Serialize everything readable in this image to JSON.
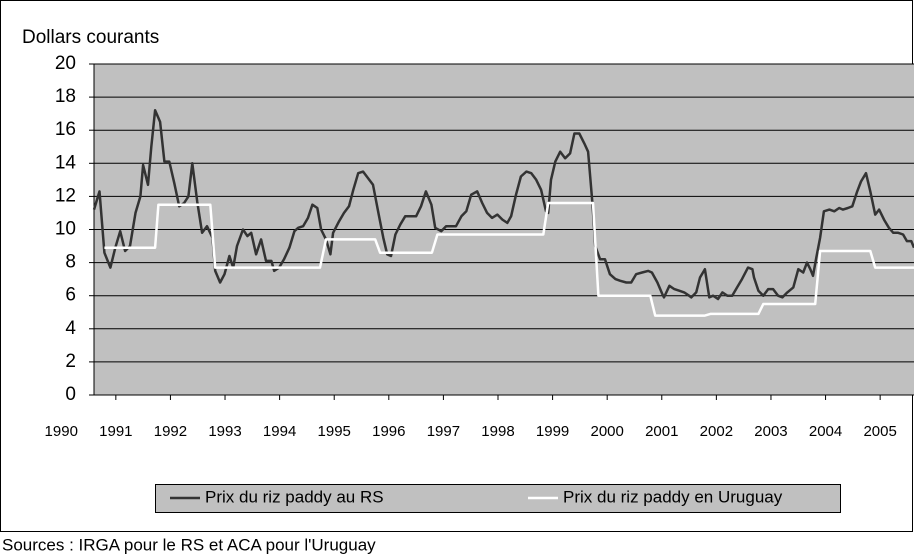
{
  "chart_data": {
    "type": "line",
    "y_label": "Dollars courants",
    "source": "Sources : IRGA pour le RS et ACA pour l'Uruguay",
    "xlim": [
      1990.6,
      2005.62
    ],
    "xticks": [
      1990,
      1991,
      1992,
      1993,
      1994,
      1995,
      1996,
      1997,
      1998,
      1999,
      2000,
      2001,
      2002,
      2003,
      2004,
      2005
    ],
    "ylim": [
      0,
      20
    ],
    "yticks": [
      0,
      2,
      4,
      6,
      8,
      10,
      12,
      14,
      16,
      18,
      20
    ],
    "grid": true,
    "legend": "bottom",
    "series": [
      {
        "name": "Prix du riz paddy  au RS",
        "color": "#333333",
        "x": [
          1990.6,
          1990.7,
          1990.79,
          1990.9,
          1990.99,
          1991.08,
          1991.17,
          1991.26,
          1991.36,
          1991.45,
          1991.5,
          1991.59,
          1991.65,
          1991.72,
          1991.81,
          1991.89,
          1991.98,
          1992.07,
          1992.16,
          1992.25,
          1992.33,
          1992.4,
          1992.49,
          1992.58,
          1992.67,
          1992.77,
          1992.82,
          1992.91,
          1992.99,
          1993.08,
          1993.15,
          1993.22,
          1993.33,
          1993.41,
          1993.48,
          1993.57,
          1993.66,
          1993.75,
          1993.85,
          1993.9,
          1993.99,
          1994.08,
          1994.18,
          1994.27,
          1994.34,
          1994.43,
          1994.52,
          1994.6,
          1994.69,
          1994.76,
          1994.85,
          1994.93,
          1994.98,
          1995.09,
          1995.18,
          1995.27,
          1995.35,
          1995.44,
          1995.53,
          1995.62,
          1995.71,
          1995.81,
          1995.9,
          1995.97,
          1996.04,
          1996.12,
          1996.21,
          1996.3,
          1996.41,
          1996.5,
          1996.59,
          1996.68,
          1996.78,
          1996.85,
          1996.96,
          1997.05,
          1997.14,
          1997.23,
          1997.33,
          1997.42,
          1997.51,
          1997.62,
          1997.71,
          1997.8,
          1997.89,
          1997.99,
          1998.08,
          1998.17,
          1998.24,
          1998.33,
          1998.42,
          1998.52,
          1998.61,
          1998.7,
          1998.79,
          1998.88,
          1998.92,
          1998.97,
          1999.05,
          1999.14,
          1999.23,
          1999.32,
          1999.4,
          1999.49,
          1999.58,
          1999.65,
          1999.73,
          1999.78,
          1999.87,
          1999.96,
          2000.05,
          2000.15,
          2000.24,
          2000.35,
          2000.44,
          2000.53,
          2000.64,
          2000.75,
          2000.82,
          2000.92,
          2001.01,
          2001.04,
          2001.14,
          2001.23,
          2001.32,
          2001.41,
          2001.5,
          2001.54,
          2001.63,
          2001.7,
          2001.79,
          2001.87,
          2001.94,
          2002.03,
          2002.11,
          2002.2,
          2002.29,
          2002.38,
          2002.47,
          2002.58,
          2002.66,
          2002.69,
          2002.77,
          2002.86,
          2002.95,
          2003.04,
          2003.13,
          2003.21,
          2003.3,
          2003.41,
          2003.5,
          2003.59,
          2003.66,
          2003.72,
          2003.77,
          2003.83,
          2003.9,
          2003.97,
          2004.07,
          2004.16,
          2004.25,
          2004.32,
          2004.41,
          2004.49,
          2004.58,
          2004.65,
          2004.74,
          2004.82,
          2004.91,
          2004.98,
          2005.07,
          2005.16,
          2005.24,
          2005.33,
          2005.42,
          2005.49,
          2005.57,
          2005.62
        ],
        "values": [
          11.2,
          12.3,
          8.6,
          7.7,
          8.9,
          9.9,
          8.7,
          9.0,
          11.0,
          12.0,
          13.9,
          12.7,
          15.0,
          17.2,
          16.5,
          14.1,
          14.1,
          12.8,
          11.4,
          11.6,
          12.0,
          14.0,
          11.7,
          9.8,
          10.2,
          9.5,
          7.5,
          6.8,
          7.3,
          8.4,
          7.7,
          9.0,
          10.0,
          9.6,
          9.8,
          8.5,
          9.4,
          8.1,
          8.1,
          7.5,
          7.7,
          8.2,
          8.9,
          9.9,
          10.1,
          10.2,
          10.7,
          11.5,
          11.3,
          10.0,
          9.4,
          8.5,
          9.8,
          10.5,
          11.0,
          11.4,
          12.4,
          13.4,
          13.5,
          13.1,
          12.7,
          11.0,
          9.5,
          8.5,
          8.4,
          9.7,
          10.3,
          10.8,
          10.8,
          10.8,
          11.4,
          12.3,
          11.5,
          10.1,
          9.9,
          10.2,
          10.2,
          10.2,
          10.8,
          11.1,
          12.1,
          12.3,
          11.6,
          11.0,
          10.7,
          10.9,
          10.6,
          10.4,
          10.8,
          12.1,
          13.2,
          13.5,
          13.4,
          13.0,
          12.4,
          11.1,
          11.0,
          13.0,
          14.1,
          14.7,
          14.3,
          14.6,
          15.8,
          15.8,
          15.2,
          14.7,
          11.6,
          9.0,
          8.2,
          8.2,
          7.3,
          7.0,
          6.9,
          6.8,
          6.8,
          7.3,
          7.4,
          7.5,
          7.4,
          6.8,
          6.1,
          5.9,
          6.6,
          6.4,
          6.3,
          6.2,
          6.0,
          5.9,
          6.2,
          7.1,
          7.6,
          5.9,
          6.0,
          5.8,
          6.2,
          6.0,
          6.0,
          6.5,
          7.0,
          7.7,
          7.6,
          7.1,
          6.3,
          6.0,
          6.4,
          6.4,
          6.0,
          5.9,
          6.2,
          6.5,
          7.6,
          7.4,
          8.0,
          7.6,
          7.2,
          8.3,
          9.5,
          11.1,
          11.2,
          11.1,
          11.3,
          11.2,
          11.3,
          11.4,
          12.3,
          12.9,
          13.4,
          12.3,
          10.9,
          11.2,
          10.6,
          10.1,
          9.8,
          9.8,
          9.7,
          9.3,
          9.3,
          8.9
        ]
      },
      {
        "name": "Prix du riz paddy en Uruguay",
        "color": "#ffffff",
        "x": [
          1990.79,
          1991.72,
          1991.78,
          1992.73,
          1992.82,
          1994.74,
          1994.85,
          1995.75,
          1995.84,
          1996.79,
          1996.89,
          1998.83,
          1998.92,
          1999.74,
          1999.84,
          2000.79,
          2000.88,
          2001.79,
          2001.89,
          2002.77,
          2002.86,
          2003.81,
          2003.9,
          2004.82,
          2004.91,
          2005.62
        ],
        "values": [
          8.9,
          8.9,
          11.5,
          11.5,
          7.7,
          7.7,
          9.4,
          9.4,
          8.6,
          8.6,
          9.7,
          9.7,
          11.6,
          11.6,
          6.0,
          6.0,
          4.8,
          4.8,
          4.9,
          4.9,
          5.5,
          5.5,
          8.7,
          8.7,
          7.7,
          7.7
        ]
      }
    ]
  }
}
